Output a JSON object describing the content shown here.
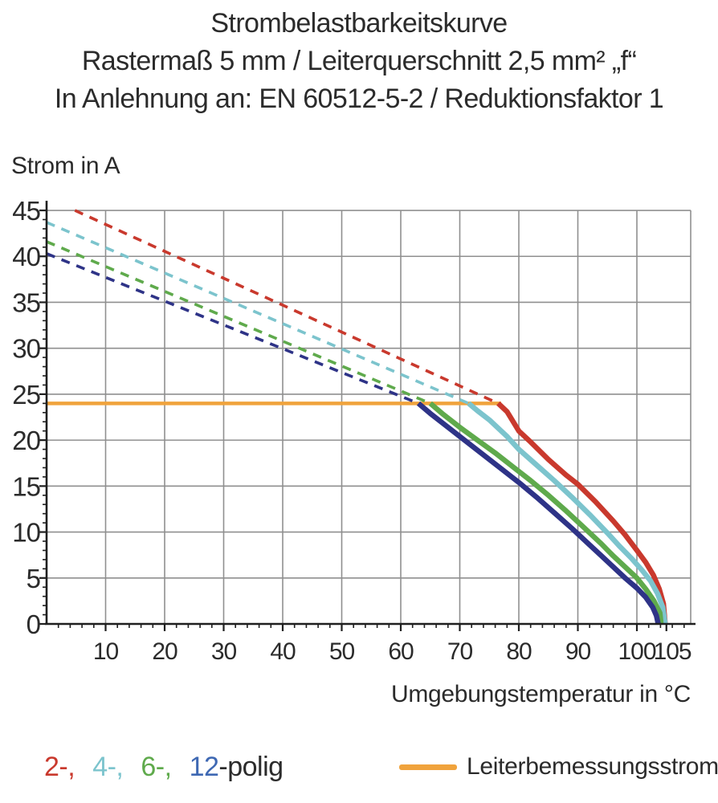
{
  "title": {
    "line1": "Strombelastbarkeitskurve",
    "line2": "Rastermaß 5 mm / Leiterquerschnitt 2,5 mm² „f“",
    "line3": "In Anlehnung an: EN 60512-5-2 / Reduktionsfaktor 1"
  },
  "axes": {
    "y_label": "Strom in A",
    "x_label": "Umgebungstemperatur in °C"
  },
  "legend": {
    "pole_segments": [
      {
        "label": "2-,",
        "color": "#c9392d"
      },
      {
        "label": "4-,",
        "color": "#7cc4cd"
      },
      {
        "label": "6-,",
        "color": "#5faa4c"
      },
      {
        "label": "12",
        "color": "#3e68b3"
      }
    ],
    "pole_suffix": "-polig",
    "rated_current_label": "Leiterbemessungsstrom"
  },
  "colors": {
    "red_2pole": "#c9392d",
    "cyan_4pole": "#7cc4cd",
    "green_6pole": "#5faa4c",
    "navy_12pole": "#2e3387",
    "orange_rated": "#f0a33c",
    "grid": "#8f8f8f",
    "axis": "#1f1f1f",
    "text": "#2b2b2b"
  },
  "chart_data": {
    "type": "line",
    "title": "Strombelastbarkeitskurve — Rastermaß 5 mm / Leiterquerschnitt 2,5 mm² „f“ — In Anlehnung an: EN 60512-5-2 / Reduktionsfaktor 1",
    "xlabel": "Umgebungstemperatur in °C",
    "ylabel": "Strom in A",
    "xlim": [
      0,
      109
    ],
    "ylim": [
      0,
      45
    ],
    "x_major_ticks": [
      10,
      20,
      30,
      40,
      50,
      60,
      70,
      80,
      90,
      100,
      105
    ],
    "y_major_ticks": [
      0,
      5,
      10,
      15,
      20,
      25,
      30,
      35,
      40,
      45
    ],
    "x_minor_step": 2,
    "y_minor_step": 1,
    "grid": true,
    "rated_current_A": 24,
    "rated_current_points": [
      [
        0,
        24
      ],
      [
        77,
        24
      ]
    ],
    "series": [
      {
        "name": "2-polig",
        "color_key": "red_2pole",
        "dashed_points": [
          [
            4.8,
            45
          ],
          [
            76.5,
            24
          ]
        ],
        "solid_points": [
          [
            76.5,
            24
          ],
          [
            78,
            23.1
          ],
          [
            80,
            21.0
          ],
          [
            82,
            19.8
          ],
          [
            85,
            17.9
          ],
          [
            88,
            16.2
          ],
          [
            90,
            15.2
          ],
          [
            93,
            13.3
          ],
          [
            96,
            11.2
          ],
          [
            98,
            9.7
          ],
          [
            100,
            8.0
          ],
          [
            101.5,
            6.7
          ],
          [
            102.8,
            5.3
          ],
          [
            103.8,
            3.8
          ],
          [
            104.5,
            2.2
          ],
          [
            104.8,
            0
          ]
        ]
      },
      {
        "name": "4-polig",
        "color_key": "cyan_4pole",
        "dashed_points": [
          [
            0,
            43.7
          ],
          [
            71.5,
            24
          ]
        ],
        "solid_points": [
          [
            71.5,
            24
          ],
          [
            73,
            23.2
          ],
          [
            75,
            22.2
          ],
          [
            78,
            20.4
          ],
          [
            80,
            19.0
          ],
          [
            83,
            17.3
          ],
          [
            86,
            15.6
          ],
          [
            89,
            13.8
          ],
          [
            92,
            11.9
          ],
          [
            95,
            9.9
          ],
          [
            97,
            8.5
          ],
          [
            99,
            7.2
          ],
          [
            100.8,
            5.9
          ],
          [
            102.3,
            4.7
          ],
          [
            103.5,
            3.3
          ],
          [
            104.4,
            1.8
          ],
          [
            104.8,
            0
          ]
        ]
      },
      {
        "name": "6-polig",
        "color_key": "green_6pole",
        "dashed_points": [
          [
            0,
            41.6
          ],
          [
            65,
            24
          ]
        ],
        "solid_points": [
          [
            65,
            24
          ],
          [
            67,
            22.9
          ],
          [
            70,
            21.4
          ],
          [
            73,
            20.0
          ],
          [
            76,
            18.6
          ],
          [
            79,
            17.1
          ],
          [
            82,
            15.6
          ],
          [
            85,
            14.0
          ],
          [
            88,
            12.3
          ],
          [
            91,
            10.5
          ],
          [
            94,
            8.7
          ],
          [
            96,
            7.4
          ],
          [
            98,
            6.2
          ],
          [
            100,
            5.0
          ],
          [
            101.5,
            3.8
          ],
          [
            102.9,
            2.5
          ],
          [
            103.9,
            1.2
          ],
          [
            104.1,
            0
          ]
        ]
      },
      {
        "name": "12-polig",
        "color_key": "navy_12pole",
        "dashed_points": [
          [
            0,
            40.3
          ],
          [
            63,
            24
          ]
        ],
        "solid_points": [
          [
            63,
            24
          ],
          [
            65,
            22.9
          ],
          [
            68,
            21.4
          ],
          [
            71,
            19.9
          ],
          [
            74,
            18.4
          ],
          [
            77,
            16.9
          ],
          [
            80,
            15.4
          ],
          [
            83,
            13.8
          ],
          [
            86,
            12.1
          ],
          [
            89,
            10.4
          ],
          [
            92,
            8.6
          ],
          [
            94,
            7.4
          ],
          [
            96,
            6.2
          ],
          [
            98,
            5.0
          ],
          [
            100,
            3.9
          ],
          [
            101.5,
            2.9
          ],
          [
            102.7,
            1.8
          ],
          [
            103.3,
            0.9
          ],
          [
            103.6,
            0
          ]
        ]
      }
    ],
    "legend_position": "bottom"
  }
}
